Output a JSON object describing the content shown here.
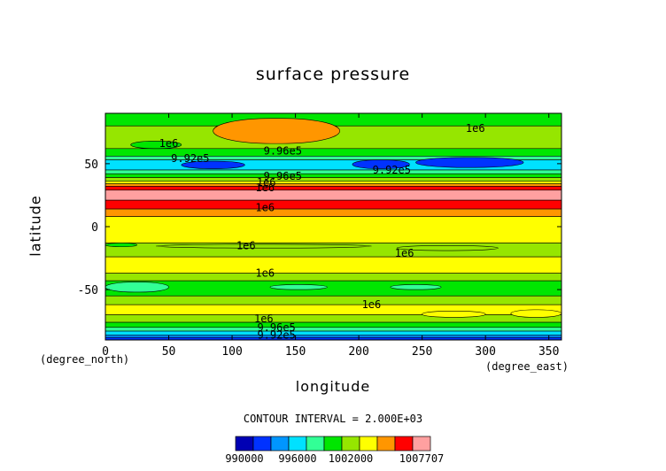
{
  "chart_data": {
    "type": "heatmap",
    "title": "surface pressure",
    "xlabel": "longitude",
    "ylabel": "latitude",
    "x_unit": "(degree_north)",
    "y_unit": "(degree_east)",
    "xlim": [
      0,
      360
    ],
    "ylim": [
      -90,
      90
    ],
    "xticks": [
      "0",
      "50",
      "100",
      "150",
      "200",
      "250",
      "300",
      "350"
    ],
    "yticks": [
      "-50",
      "0",
      "50"
    ],
    "contour_interval_label": "CONTOUR INTERVAL = 2.000E+03",
    "colorbar_labels": [
      "990000",
      "996000",
      "1002000",
      "1007707"
    ],
    "levels": [
      988000,
      990000,
      992000,
      994000,
      996000,
      998000,
      1000000,
      1002000,
      1004000,
      1006000,
      1007707
    ],
    "colors": [
      "#0000b4",
      "#0032ff",
      "#0096ff",
      "#00e1ff",
      "#32ff96",
      "#00e600",
      "#96e600",
      "#ffff00",
      "#ff9600",
      "#ff0000",
      "#ffa0a0"
    ],
    "zonal_bands": [
      {
        "lat_from": 90,
        "lat_to": 80,
        "class": 5
      },
      {
        "lat_from": 80,
        "lat_to": 62,
        "class": 6
      },
      {
        "lat_from": 62,
        "lat_to": 56,
        "class": 5
      },
      {
        "lat_from": 56,
        "lat_to": 53,
        "class": 4
      },
      {
        "lat_from": 53,
        "lat_to": 45,
        "class": 3
      },
      {
        "lat_from": 45,
        "lat_to": 42,
        "class": 4
      },
      {
        "lat_from": 42,
        "lat_to": 39,
        "class": 5
      },
      {
        "lat_from": 39,
        "lat_to": 36,
        "class": 6
      },
      {
        "lat_from": 36,
        "lat_to": 34,
        "class": 7
      },
      {
        "lat_from": 34,
        "lat_to": 32,
        "class": 8
      },
      {
        "lat_from": 32,
        "lat_to": 29,
        "class": 9
      },
      {
        "lat_from": 29,
        "lat_to": 21,
        "class": 10
      },
      {
        "lat_from": 21,
        "lat_to": 14,
        "class": 9
      },
      {
        "lat_from": 14,
        "lat_to": 8,
        "class": 8
      },
      {
        "lat_from": 8,
        "lat_to": -13,
        "class": 7
      },
      {
        "lat_from": -13,
        "lat_to": -24,
        "class": 6
      },
      {
        "lat_from": -24,
        "lat_to": -37,
        "class": 7
      },
      {
        "lat_from": -37,
        "lat_to": -43,
        "class": 6
      },
      {
        "lat_from": -43,
        "lat_to": -55,
        "class": 5
      },
      {
        "lat_from": -55,
        "lat_to": -62,
        "class": 6
      },
      {
        "lat_from": -62,
        "lat_to": -70,
        "class": 7
      },
      {
        "lat_from": -70,
        "lat_to": -76,
        "class": 6
      },
      {
        "lat_from": -76,
        "lat_to": -80,
        "class": 5
      },
      {
        "lat_from": -80,
        "lat_to": -83,
        "class": 4
      },
      {
        "lat_from": -83,
        "lat_to": -86,
        "class": 3
      },
      {
        "lat_from": -86,
        "lat_to": -88,
        "class": 2
      },
      {
        "lat_from": -88,
        "lat_to": -90,
        "class": 1
      }
    ],
    "cells": [
      {
        "lon": [
          85,
          185
        ],
        "lat": [
          66,
          86
        ],
        "class": 8
      },
      {
        "lon": [
          20,
          60
        ],
        "lat": [
          62,
          68
        ],
        "class": 5
      },
      {
        "lon": [
          60,
          110
        ],
        "lat": [
          46,
          52
        ],
        "class": 1
      },
      {
        "lon": [
          195,
          240
        ],
        "lat": [
          46,
          53
        ],
        "class": 1
      },
      {
        "lon": [
          245,
          330
        ],
        "lat": [
          47,
          55
        ],
        "class": 1
      },
      {
        "lon": [
          0,
          25
        ],
        "lat": [
          -16,
          -13
        ],
        "class": 5
      },
      {
        "lon": [
          40,
          210
        ],
        "lat": [
          -17,
          -14
        ],
        "class": 6
      },
      {
        "lon": [
          230,
          310
        ],
        "lat": [
          -19,
          -15
        ],
        "class": 6
      },
      {
        "lon": [
          0,
          50
        ],
        "lat": [
          -52,
          -44
        ],
        "class": 4
      },
      {
        "lon": [
          130,
          175
        ],
        "lat": [
          -50,
          -46
        ],
        "class": 4
      },
      {
        "lon": [
          225,
          265
        ],
        "lat": [
          -50,
          -46
        ],
        "class": 4
      },
      {
        "lon": [
          250,
          300
        ],
        "lat": [
          -72,
          -67
        ],
        "class": 7
      },
      {
        "lon": [
          320,
          360
        ],
        "lat": [
          -72,
          -66
        ],
        "class": 7
      }
    ],
    "contour_labels": [
      {
        "text": "1e6",
        "lon": 50,
        "lat": 66
      },
      {
        "text": "9.92e5",
        "lon": 67,
        "lat": 54
      },
      {
        "text": "9.96e5",
        "lon": 140,
        "lat": 60
      },
      {
        "text": "1e6",
        "lon": 292,
        "lat": 78
      },
      {
        "text": "9.92e5",
        "lon": 226,
        "lat": 45
      },
      {
        "text": "9.96e5",
        "lon": 140,
        "lat": 40
      },
      {
        "text": "1e6",
        "lon": 127,
        "lat": 35
      },
      {
        "text": "1e6",
        "lon": 126,
        "lat": 31
      },
      {
        "text": "1e6",
        "lon": 126,
        "lat": 15
      },
      {
        "text": "1e6",
        "lon": 111,
        "lat": -15
      },
      {
        "text": "1e6",
        "lon": 236,
        "lat": -21
      },
      {
        "text": "1e6",
        "lon": 126,
        "lat": -37
      },
      {
        "text": "1e6",
        "lon": 210,
        "lat": -62
      },
      {
        "text": "1e6",
        "lon": 125,
        "lat": -73
      },
      {
        "text": "9.96e5",
        "lon": 135,
        "lat": -80
      },
      {
        "text": "9.92e5",
        "lon": 135,
        "lat": -86
      }
    ]
  }
}
